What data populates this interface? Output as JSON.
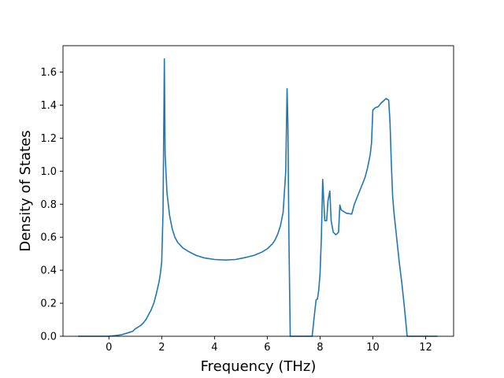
{
  "chart_data": {
    "type": "line",
    "title": "",
    "xlabel": "Frequency (THz)",
    "ylabel": "Density of States",
    "xlim": [
      -1.74,
      13.06
    ],
    "ylim": [
      0.0,
      1.76
    ],
    "xticks": [
      0,
      2,
      4,
      6,
      8,
      10,
      12
    ],
    "xtick_labels": [
      "0",
      "2",
      "4",
      "6",
      "8",
      "10",
      "12"
    ],
    "yticks": [
      0.0,
      0.2,
      0.4,
      0.6,
      0.8,
      1.0,
      1.2,
      1.4,
      1.6
    ],
    "ytick_labels": [
      "0.0",
      "0.2",
      "0.4",
      "0.6",
      "0.8",
      "1.0",
      "1.2",
      "1.4",
      "1.6"
    ],
    "grid": false,
    "legend": "none",
    "color": "#1f77b4",
    "series": [
      {
        "x": [
          -1.17,
          -0.5,
          0.0,
          0.3,
          0.5,
          0.7,
          0.9,
          1.0,
          1.1,
          1.2,
          1.3,
          1.4,
          1.5,
          1.6,
          1.7,
          1.8,
          1.9,
          1.95,
          2.0,
          2.05,
          2.1,
          2.13,
          2.2,
          2.3,
          2.4,
          2.5,
          2.6,
          2.8,
          3.0,
          3.3,
          3.6,
          4.0,
          4.4,
          4.8,
          5.2,
          5.5,
          5.8,
          6.0,
          6.2,
          6.3,
          6.4,
          6.5,
          6.6,
          6.7,
          6.75,
          6.78,
          6.82,
          6.87,
          6.9,
          7.0,
          7.5,
          7.7,
          7.8,
          7.85,
          7.9,
          7.95,
          8.0,
          8.05,
          8.1,
          8.13,
          8.18,
          8.25,
          8.3,
          8.37,
          8.42,
          8.5,
          8.6,
          8.7,
          8.75,
          8.8,
          8.9,
          9.0,
          9.2,
          9.3,
          9.5,
          9.7,
          9.8,
          9.9,
          9.95,
          10.0,
          10.1,
          10.2,
          10.3,
          10.4,
          10.5,
          10.55,
          10.6,
          10.65,
          10.7,
          10.75,
          10.8,
          10.9,
          11.0,
          11.1,
          11.2,
          11.3,
          11.35,
          11.5,
          12.0,
          12.45
        ],
        "y": [
          0.0,
          0.0,
          0.0,
          0.005,
          0.01,
          0.02,
          0.03,
          0.045,
          0.055,
          0.065,
          0.08,
          0.1,
          0.13,
          0.16,
          0.2,
          0.26,
          0.33,
          0.38,
          0.45,
          0.75,
          1.68,
          1.1,
          0.87,
          0.73,
          0.65,
          0.6,
          0.57,
          0.535,
          0.515,
          0.49,
          0.475,
          0.465,
          0.462,
          0.465,
          0.478,
          0.49,
          0.51,
          0.53,
          0.56,
          0.585,
          0.62,
          0.67,
          0.75,
          1.0,
          1.5,
          1.3,
          0.6,
          0.0,
          0.0,
          0.0,
          0.0,
          0.0,
          0.15,
          0.22,
          0.225,
          0.28,
          0.38,
          0.6,
          0.95,
          0.85,
          0.7,
          0.7,
          0.82,
          0.88,
          0.7,
          0.63,
          0.615,
          0.63,
          0.795,
          0.765,
          0.755,
          0.745,
          0.74,
          0.8,
          0.88,
          0.96,
          1.02,
          1.1,
          1.17,
          1.37,
          1.385,
          1.39,
          1.41,
          1.425,
          1.44,
          1.435,
          1.43,
          1.3,
          1.05,
          0.85,
          0.75,
          0.6,
          0.45,
          0.32,
          0.17,
          0.0,
          0.0,
          0.0,
          0.0,
          0.0
        ]
      }
    ]
  }
}
